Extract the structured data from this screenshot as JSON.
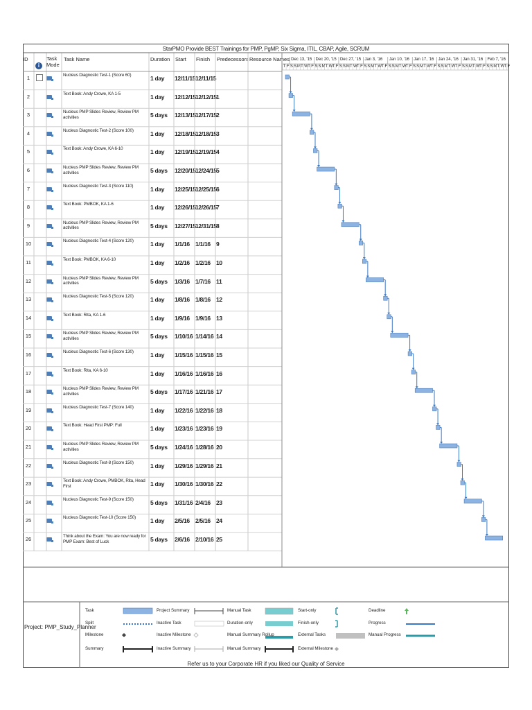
{
  "title": "StarPMO Provide BEST Trainings for PMP, PgMP, Six Sigma, ITIL, CBAP, Agile, SCRUM",
  "columns": {
    "id": "ID",
    "task_mode": "Task Mode",
    "task_name": "Task Name",
    "duration": "Duration",
    "start": "Start",
    "finish": "Finish",
    "predecessors": "Predecessors",
    "resource_names": "Resource Names"
  },
  "timeline": {
    "weeks": [
      "Dec 13, '15",
      "Dec 20, '15",
      "Dec 27, '15",
      "Jan 3, '16",
      "Jan 10, '16",
      "Jan 17, '16",
      "Jan 24, '16",
      "Jan 31, '16",
      "Feb 7, '16"
    ],
    "day_letters": [
      "T",
      "F",
      "S",
      "S",
      "M",
      "T",
      "W",
      "T",
      "F",
      "S",
      "S",
      "M",
      "T",
      "W",
      "T",
      "F",
      "S",
      "S",
      "M",
      "T",
      "W",
      "T",
      "F",
      "S",
      "S",
      "M",
      "T",
      "W",
      "T",
      "F",
      "S",
      "S",
      "M",
      "T",
      "W",
      "T",
      "F",
      "S",
      "S",
      "M",
      "T",
      "W",
      "T",
      "F",
      "S",
      "S",
      "M",
      "T",
      "W",
      "T",
      "F",
      "S",
      "S",
      "M",
      "T",
      "W",
      "T",
      "F",
      "S",
      "S",
      "M",
      "T",
      "W",
      "T",
      "F"
    ]
  },
  "tasks": [
    {
      "id": "1",
      "name": "Nucleus Diagnostic Test-1 (Score 60)",
      "duration": "1 day",
      "start": "12/11/15",
      "finish": "12/11/15",
      "pred": "",
      "s": 0,
      "d": 1
    },
    {
      "id": "2",
      "name": "Text Book: Andy Crowe, KA 1-5",
      "duration": "1 day",
      "start": "12/12/15",
      "finish": "12/12/15",
      "pred": "1",
      "s": 1,
      "d": 1
    },
    {
      "id": "3",
      "name": "Nucleus PMP Slides Review, Review PM activities",
      "duration": "5 days",
      "start": "12/13/15",
      "finish": "12/17/15",
      "pred": "2",
      "s": 2,
      "d": 5
    },
    {
      "id": "4",
      "name": "Nucleus Diagnostic Test-2 (Score 100)",
      "duration": "1 day",
      "start": "12/18/15",
      "finish": "12/18/15",
      "pred": "3",
      "s": 7,
      "d": 1
    },
    {
      "id": "5",
      "name": "Text Book: Andy Crowe, KA 6-10",
      "duration": "1 day",
      "start": "12/19/15",
      "finish": "12/19/15",
      "pred": "4",
      "s": 8,
      "d": 1
    },
    {
      "id": "6",
      "name": "Nucleus PMP Slides Review, Review PM activities",
      "duration": "5 days",
      "start": "12/20/15",
      "finish": "12/24/15",
      "pred": "5",
      "s": 9,
      "d": 5
    },
    {
      "id": "7",
      "name": "Nucleus Diagnostic Test-3 (Score 110)",
      "duration": "1 day",
      "start": "12/25/15",
      "finish": "12/25/15",
      "pred": "6",
      "s": 14,
      "d": 1
    },
    {
      "id": "8",
      "name": "Text Book: PMBOK, KA 1-6",
      "duration": "1 day",
      "start": "12/26/15",
      "finish": "12/26/15",
      "pred": "7",
      "s": 15,
      "d": 1
    },
    {
      "id": "9",
      "name": "Nucleus PMP Slides Review, Review PM activities",
      "duration": "5 days",
      "start": "12/27/15",
      "finish": "12/31/15",
      "pred": "8",
      "s": 16,
      "d": 5
    },
    {
      "id": "10",
      "name": "Nucleus Diagnostic Test-4 (Score 120)",
      "duration": "1 day",
      "start": "1/1/16",
      "finish": "1/1/16",
      "pred": "9",
      "s": 21,
      "d": 1
    },
    {
      "id": "11",
      "name": "Text Book: PMBOK, KA 6-10",
      "duration": "1 day",
      "start": "1/2/16",
      "finish": "1/2/16",
      "pred": "10",
      "s": 22,
      "d": 1
    },
    {
      "id": "12",
      "name": "Nucleus PMP Slides Review, Review PM activities",
      "duration": "5 days",
      "start": "1/3/16",
      "finish": "1/7/16",
      "pred": "11",
      "s": 23,
      "d": 5
    },
    {
      "id": "13",
      "name": "Nucleus Diagnostic Test-5 (Score 120)",
      "duration": "1 day",
      "start": "1/8/16",
      "finish": "1/8/16",
      "pred": "12",
      "s": 28,
      "d": 1
    },
    {
      "id": "14",
      "name": "Text Book: Rita, KA 1-6",
      "duration": "1 day",
      "start": "1/9/16",
      "finish": "1/9/16",
      "pred": "13",
      "s": 29,
      "d": 1
    },
    {
      "id": "15",
      "name": "Nucleus PMP Slides Review, Review PM activities",
      "duration": "5 days",
      "start": "1/10/16",
      "finish": "1/14/16",
      "pred": "14",
      "s": 30,
      "d": 5
    },
    {
      "id": "16",
      "name": "Nucleus Diagnostic Test-6 (Score 130)",
      "duration": "1 day",
      "start": "1/15/16",
      "finish": "1/15/16",
      "pred": "15",
      "s": 35,
      "d": 1
    },
    {
      "id": "17",
      "name": "Text Book: Rita, KA 6-10",
      "duration": "1 day",
      "start": "1/16/16",
      "finish": "1/16/16",
      "pred": "16",
      "s": 36,
      "d": 1
    },
    {
      "id": "18",
      "name": "Nucleus PMP Slides Review, Review PM activities",
      "duration": "5 days",
      "start": "1/17/16",
      "finish": "1/21/16",
      "pred": "17",
      "s": 37,
      "d": 5
    },
    {
      "id": "19",
      "name": "Nucleus Diagnostic Test-7 (Score 140)",
      "duration": "1 day",
      "start": "1/22/16",
      "finish": "1/22/16",
      "pred": "18",
      "s": 42,
      "d": 1
    },
    {
      "id": "20",
      "name": "Text Book: Head First PMP: Full",
      "duration": "1 day",
      "start": "1/23/16",
      "finish": "1/23/16",
      "pred": "19",
      "s": 43,
      "d": 1
    },
    {
      "id": "21",
      "name": "Nucleus PMP Slides Review, Review PM activities",
      "duration": "5 days",
      "start": "1/24/16",
      "finish": "1/28/16",
      "pred": "20",
      "s": 44,
      "d": 5
    },
    {
      "id": "22",
      "name": "Nucleus Diagnostic Test-8 (Score 150)",
      "duration": "1 day",
      "start": "1/29/16",
      "finish": "1/29/16",
      "pred": "21",
      "s": 49,
      "d": 1
    },
    {
      "id": "23",
      "name": "Text Book: Andy Crowe, PMBOK, Rita,  Head First",
      "duration": "1 day",
      "start": "1/30/16",
      "finish": "1/30/16",
      "pred": "22",
      "s": 50,
      "d": 1
    },
    {
      "id": "24",
      "name": "Nucleus Diagnostic Test-9 (Score 150)",
      "duration": "5 days",
      "start": "1/31/16",
      "finish": "2/4/16",
      "pred": "23",
      "s": 51,
      "d": 5
    },
    {
      "id": "25",
      "name": "Nucleus Diagnostic Test-10 (Score   150)",
      "duration": "1 day",
      "start": "2/5/16",
      "finish": "2/5/16",
      "pred": "24",
      "s": 56,
      "d": 1
    },
    {
      "id": "26",
      "name": "Think about the Exam: You are now   ready for PMP Exam: Best of Luck",
      "duration": "5 days",
      "start": "2/6/16",
      "finish": "2/10/16",
      "pred": "25",
      "s": 57,
      "d": 5
    }
  ],
  "legend": {
    "project": "Project: PMP_Study_Planner",
    "items": [
      [
        "Task",
        "Project Summary",
        "Manual Task",
        "Start-only",
        "Deadline"
      ],
      [
        "Split",
        "Inactive Task",
        "Duration-only",
        "Finish-only",
        "Progress"
      ],
      [
        "Milestone",
        "Inactive Milestone",
        "Manual Summary Rollup",
        "External Tasks",
        "Manual Progress"
      ],
      [
        "Summary",
        "Inactive Summary",
        "Manual Summary",
        "External Milestone",
        ""
      ]
    ]
  },
  "footer": "Refer us to your Corporate HR if you liked our Quality of Service",
  "colors": {
    "bar": "#8db3e2",
    "bar_edge": "#4d7eb8",
    "link": "#3a78c4",
    "teal": "#2e9aa5",
    "manual": "#78cdd1",
    "grey": "#c0c0c0",
    "deadline": "#5cb85c"
  }
}
